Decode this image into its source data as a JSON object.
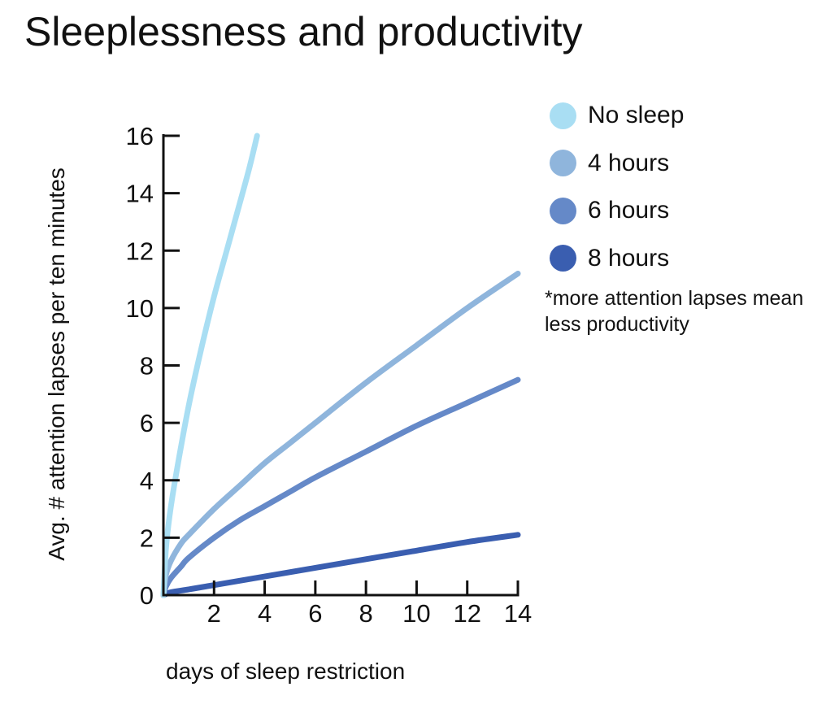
{
  "chart_data": {
    "type": "line",
    "title": "Sleeplessness and productivity",
    "xlabel": "days of sleep restriction",
    "ylabel": "Avg. # attention lapses per ten minutes",
    "xlim": [
      0,
      14
    ],
    "ylim": [
      0,
      16
    ],
    "xticks": [
      2,
      4,
      6,
      8,
      10,
      12,
      14
    ],
    "yticks": [
      0,
      2,
      4,
      6,
      8,
      10,
      12,
      14,
      16
    ],
    "grid": false,
    "legend_position": "top-right",
    "note": "*more attention lapses mean less productivity",
    "series": [
      {
        "name": "No sleep",
        "color": "#a9def3",
        "x": [
          0,
          0.1,
          0.25,
          0.5,
          1,
          1.5,
          2,
          2.5,
          3,
          3.4,
          3.7
        ],
        "y": [
          0,
          1.6,
          2.8,
          4.2,
          6.6,
          8.6,
          10.4,
          12.0,
          13.6,
          14.9,
          16
        ]
      },
      {
        "name": "4 hours",
        "color": "#8fb5dc",
        "x": [
          0,
          0.1,
          0.3,
          0.7,
          1,
          2,
          3,
          4,
          5,
          6,
          8,
          10,
          12,
          14
        ],
        "y": [
          0,
          0.7,
          1.2,
          1.8,
          2.1,
          3.0,
          3.8,
          4.6,
          5.3,
          6.0,
          7.4,
          8.7,
          10.0,
          11.2
        ]
      },
      {
        "name": "6 hours",
        "color": "#6589c8",
        "x": [
          0,
          0.1,
          0.3,
          0.7,
          1,
          2,
          3,
          4,
          5,
          6,
          8,
          10,
          12,
          14
        ],
        "y": [
          0,
          0.3,
          0.6,
          1.0,
          1.3,
          2.0,
          2.6,
          3.1,
          3.6,
          4.1,
          5.0,
          5.9,
          6.7,
          7.5
        ]
      },
      {
        "name": "8 hours",
        "color": "#3a5eb0",
        "x": [
          0,
          0.3,
          1,
          2,
          4,
          6,
          8,
          10,
          12,
          14
        ],
        "y": [
          0,
          0.1,
          0.2,
          0.35,
          0.65,
          0.95,
          1.25,
          1.55,
          1.85,
          2.1
        ]
      }
    ]
  }
}
